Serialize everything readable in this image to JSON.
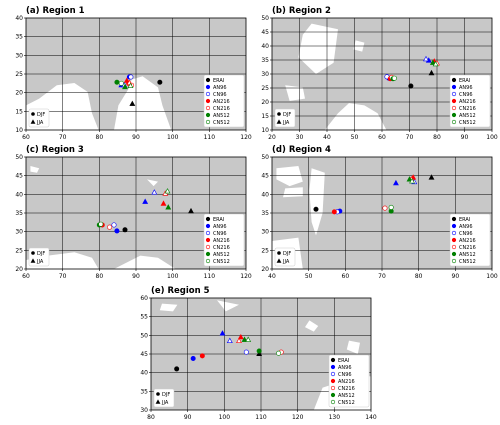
{
  "chart_data": [
    {
      "type": "scatter",
      "title": "(a) Region 1",
      "xlim": [
        60,
        120
      ],
      "ylim": [
        10,
        40
      ],
      "xticks": [
        60,
        70,
        80,
        90,
        100,
        110,
        120
      ],
      "yticks": [
        10,
        15,
        20,
        25,
        30,
        35,
        40
      ],
      "grid": true,
      "series": [
        {
          "name": "ERAI",
          "color": "#000000",
          "fill": "filled",
          "DJF": [
            96.5,
            22.8
          ],
          "JJA": [
            89.0,
            17.0
          ]
        },
        {
          "name": "AN96",
          "color": "#0000ff",
          "fill": "filled",
          "DJF": [
            88.2,
            24.2
          ],
          "JJA": [
            86.0,
            22.0
          ]
        },
        {
          "name": "CN96",
          "color": "#0000ff",
          "fill": "open",
          "DJF": [
            88.6,
            24.2
          ],
          "JJA": [
            86.8,
            22.0
          ]
        },
        {
          "name": "AN216",
          "color": "#ff0000",
          "fill": "filled",
          "DJF": [
            88.0,
            22.5
          ],
          "JJA": [
            87.5,
            23.2
          ]
        },
        {
          "name": "CN216",
          "color": "#ff0000",
          "fill": "open",
          "DJF": [
            88.8,
            22.0
          ],
          "JJA": [
            88.2,
            22.6
          ]
        },
        {
          "name": "AN512",
          "color": "#008000",
          "fill": "filled",
          "DJF": [
            84.8,
            22.8
          ],
          "JJA": [
            87.0,
            21.5
          ]
        },
        {
          "name": "CN512",
          "color": "#008000",
          "fill": "open",
          "DJF": [
            86.0,
            22.5
          ],
          "JJA": [
            88.5,
            21.8
          ]
        }
      ]
    },
    {
      "type": "scatter",
      "title": "(b) Region 2",
      "xlim": [
        20,
        100
      ],
      "ylim": [
        10,
        50
      ],
      "xticks": [
        20,
        30,
        40,
        50,
        60,
        70,
        80,
        90,
        100
      ],
      "yticks": [
        10,
        15,
        20,
        25,
        30,
        35,
        40,
        45,
        50
      ],
      "grid": true,
      "series": [
        {
          "name": "ERAI",
          "color": "#000000",
          "fill": "filled",
          "DJF": [
            70.5,
            25.7
          ],
          "JJA": [
            78.0,
            30.3
          ]
        },
        {
          "name": "AN96",
          "color": "#0000ff",
          "fill": "filled",
          "DJF": [
            62.5,
            28.5
          ],
          "JJA": [
            77.0,
            34.8
          ]
        },
        {
          "name": "CN96",
          "color": "#0000ff",
          "fill": "open",
          "DJF": [
            61.8,
            29.0
          ],
          "JJA": [
            76.0,
            35.3
          ]
        },
        {
          "name": "AN216",
          "color": "#ff0000",
          "fill": "filled",
          "DJF": [
            63.0,
            28.3
          ],
          "JJA": [
            79.0,
            34.5
          ]
        },
        {
          "name": "CN216",
          "color": "#ff0000",
          "fill": "open",
          "DJF": [
            63.5,
            28.8
          ],
          "JJA": [
            80.0,
            33.8
          ]
        },
        {
          "name": "AN512",
          "color": "#008000",
          "fill": "filled",
          "DJF": [
            64.0,
            28.3
          ],
          "JJA": [
            78.5,
            34.0
          ]
        },
        {
          "name": "CN512",
          "color": "#008000",
          "fill": "open",
          "DJF": [
            64.5,
            28.5
          ],
          "JJA": [
            79.5,
            33.5
          ]
        }
      ]
    },
    {
      "type": "scatter",
      "title": "(c) Region 3",
      "xlim": [
        60,
        120
      ],
      "ylim": [
        20,
        50
      ],
      "xticks": [
        60,
        70,
        80,
        90,
        100,
        110,
        120
      ],
      "yticks": [
        20,
        25,
        30,
        35,
        40,
        45,
        50
      ],
      "grid": true,
      "series": [
        {
          "name": "ERAI",
          "color": "#000000",
          "fill": "filled",
          "DJF": [
            87.0,
            30.5
          ],
          "JJA": [
            105.0,
            35.5
          ]
        },
        {
          "name": "AN96",
          "color": "#0000ff",
          "fill": "filled",
          "DJF": [
            84.8,
            30.2
          ],
          "JJA": [
            92.5,
            38.0
          ]
        },
        {
          "name": "CN96",
          "color": "#0000ff",
          "fill": "open",
          "DJF": [
            84.0,
            31.8
          ],
          "JJA": [
            95.0,
            40.5
          ]
        },
        {
          "name": "AN216",
          "color": "#ff0000",
          "fill": "filled",
          "DJF": [
            80.8,
            31.8
          ],
          "JJA": [
            97.5,
            37.5
          ]
        },
        {
          "name": "CN216",
          "color": "#ff0000",
          "fill": "open",
          "DJF": [
            82.8,
            31.2
          ],
          "JJA": [
            98.0,
            40.2
          ]
        },
        {
          "name": "AN512",
          "color": "#008000",
          "fill": "filled",
          "DJF": [
            80.0,
            31.8
          ],
          "JJA": [
            98.8,
            36.5
          ]
        },
        {
          "name": "CN512",
          "color": "#008000",
          "fill": "open",
          "DJF": [
            80.4,
            32.0
          ],
          "JJA": [
            98.6,
            40.8
          ]
        }
      ]
    },
    {
      "type": "scatter",
      "title": "(d) Region 4",
      "xlim": [
        40,
        100
      ],
      "ylim": [
        20,
        50
      ],
      "xticks": [
        40,
        50,
        60,
        70,
        80,
        90,
        100
      ],
      "yticks": [
        20,
        25,
        30,
        35,
        40,
        45,
        50
      ],
      "grid": true,
      "series": [
        {
          "name": "ERAI",
          "color": "#000000",
          "fill": "filled",
          "DJF": [
            52.0,
            36.0
          ],
          "JJA": [
            83.5,
            44.5
          ]
        },
        {
          "name": "AN96",
          "color": "#0000ff",
          "fill": "filled",
          "DJF": [
            58.5,
            35.5
          ],
          "JJA": [
            73.8,
            43.0
          ]
        },
        {
          "name": "CN96",
          "color": "#0000ff",
          "fill": "open",
          "DJF": [
            57.8,
            35.3
          ],
          "JJA": [
            78.8,
            43.3
          ]
        },
        {
          "name": "AN216",
          "color": "#ff0000",
          "fill": "filled",
          "DJF": [
            57.0,
            35.3
          ],
          "JJA": [
            78.5,
            44.5
          ]
        },
        {
          "name": "CN216",
          "color": "#ff0000",
          "fill": "open",
          "DJF": [
            70.8,
            36.3
          ],
          "JJA": [
            78.0,
            44.0
          ]
        },
        {
          "name": "AN512",
          "color": "#008000",
          "fill": "filled",
          "DJF": [
            72.5,
            35.5
          ],
          "JJA": [
            77.5,
            44.0
          ]
        },
        {
          "name": "CN512",
          "color": "#008000",
          "fill": "open",
          "DJF": [
            72.5,
            36.5
          ],
          "JJA": [
            78.2,
            43.5
          ]
        }
      ]
    },
    {
      "type": "scatter",
      "title": "(e) Region 5",
      "xlim": [
        80,
        140
      ],
      "ylim": [
        30,
        60
      ],
      "xticks": [
        80,
        90,
        100,
        110,
        120,
        130,
        140
      ],
      "yticks": [
        30,
        35,
        40,
        45,
        50,
        55,
        60
      ],
      "grid": true,
      "series": [
        {
          "name": "ERAI",
          "color": "#000000",
          "fill": "filled",
          "DJF": [
            87.0,
            41.0
          ],
          "JJA": [
            109.5,
            45.0
          ]
        },
        {
          "name": "AN96",
          "color": "#0000ff",
          "fill": "filled",
          "DJF": [
            91.5,
            43.8
          ],
          "JJA": [
            99.5,
            50.5
          ]
        },
        {
          "name": "CN96",
          "color": "#0000ff",
          "fill": "open",
          "DJF": [
            106.0,
            45.5
          ],
          "JJA": [
            101.5,
            48.5
          ]
        },
        {
          "name": "AN216",
          "color": "#ff0000",
          "fill": "filled",
          "DJF": [
            94.0,
            44.5
          ],
          "JJA": [
            104.5,
            49.5
          ]
        },
        {
          "name": "CN216",
          "color": "#ff0000",
          "fill": "open",
          "DJF": [
            115.5,
            45.5
          ],
          "JJA": [
            104.0,
            48.5
          ]
        },
        {
          "name": "AN512",
          "color": "#008000",
          "fill": "filled",
          "DJF": [
            109.5,
            45.8
          ],
          "JJA": [
            105.5,
            48.8
          ]
        },
        {
          "name": "CN512",
          "color": "#008000",
          "fill": "open",
          "DJF": [
            114.8,
            45.2
          ],
          "JJA": [
            106.5,
            48.8
          ]
        }
      ]
    }
  ],
  "season_legend": [
    {
      "label": "DJF",
      "marker": "circle"
    },
    {
      "label": "JJA",
      "marker": "triangle"
    }
  ],
  "colors": {
    "land": "#c8c8c8",
    "ocean": "#ffffff",
    "grid": "#000000"
  }
}
